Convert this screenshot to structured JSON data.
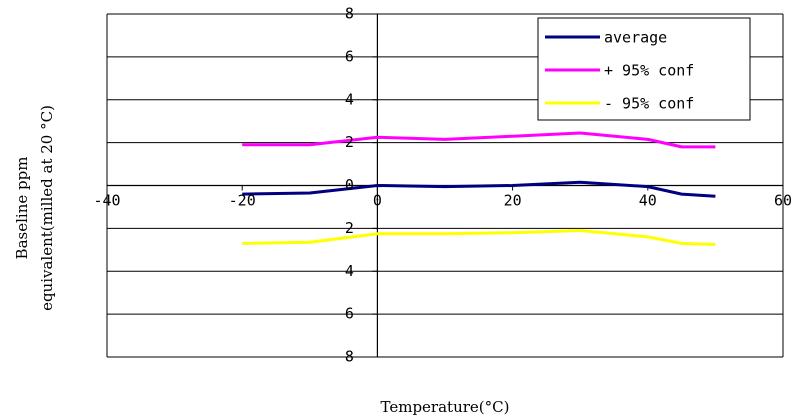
{
  "chart_data": {
    "type": "line",
    "title": "",
    "xlabel": "Temperature(°C)",
    "ylabel_lines": [
      "Baseline ppm",
      "equivalent(milled at 20 °C)"
    ],
    "xlim": [
      -40,
      60
    ],
    "ylim": [
      -8,
      8
    ],
    "xticks": [
      -40,
      -20,
      0,
      20,
      40,
      60
    ],
    "yticks": [
      -8,
      -6,
      -4,
      -2,
      0,
      2,
      4,
      6,
      8
    ],
    "ytick_labels": [
      "8",
      "6",
      "4",
      "2",
      "0",
      "2",
      "4",
      "6",
      "8"
    ],
    "grid": true,
    "legend_position": "top-right",
    "x": [
      -20,
      -10,
      0,
      10,
      20,
      30,
      40,
      45,
      50
    ],
    "series": [
      {
        "name": "average",
        "color": "#000080",
        "values": [
          -0.4,
          -0.35,
          0.0,
          -0.05,
          0.0,
          0.15,
          -0.05,
          -0.4,
          -0.5
        ]
      },
      {
        "name": "+ 95% conf",
        "color": "#ff00ff",
        "values": [
          1.9,
          1.9,
          2.25,
          2.15,
          2.3,
          2.45,
          2.15,
          1.8,
          1.8
        ]
      },
      {
        "name": "- 95% conf",
        "color": "#ffff00",
        "values": [
          -2.7,
          -2.65,
          -2.25,
          -2.25,
          -2.2,
          -2.1,
          -2.4,
          -2.7,
          -2.75
        ]
      }
    ]
  }
}
